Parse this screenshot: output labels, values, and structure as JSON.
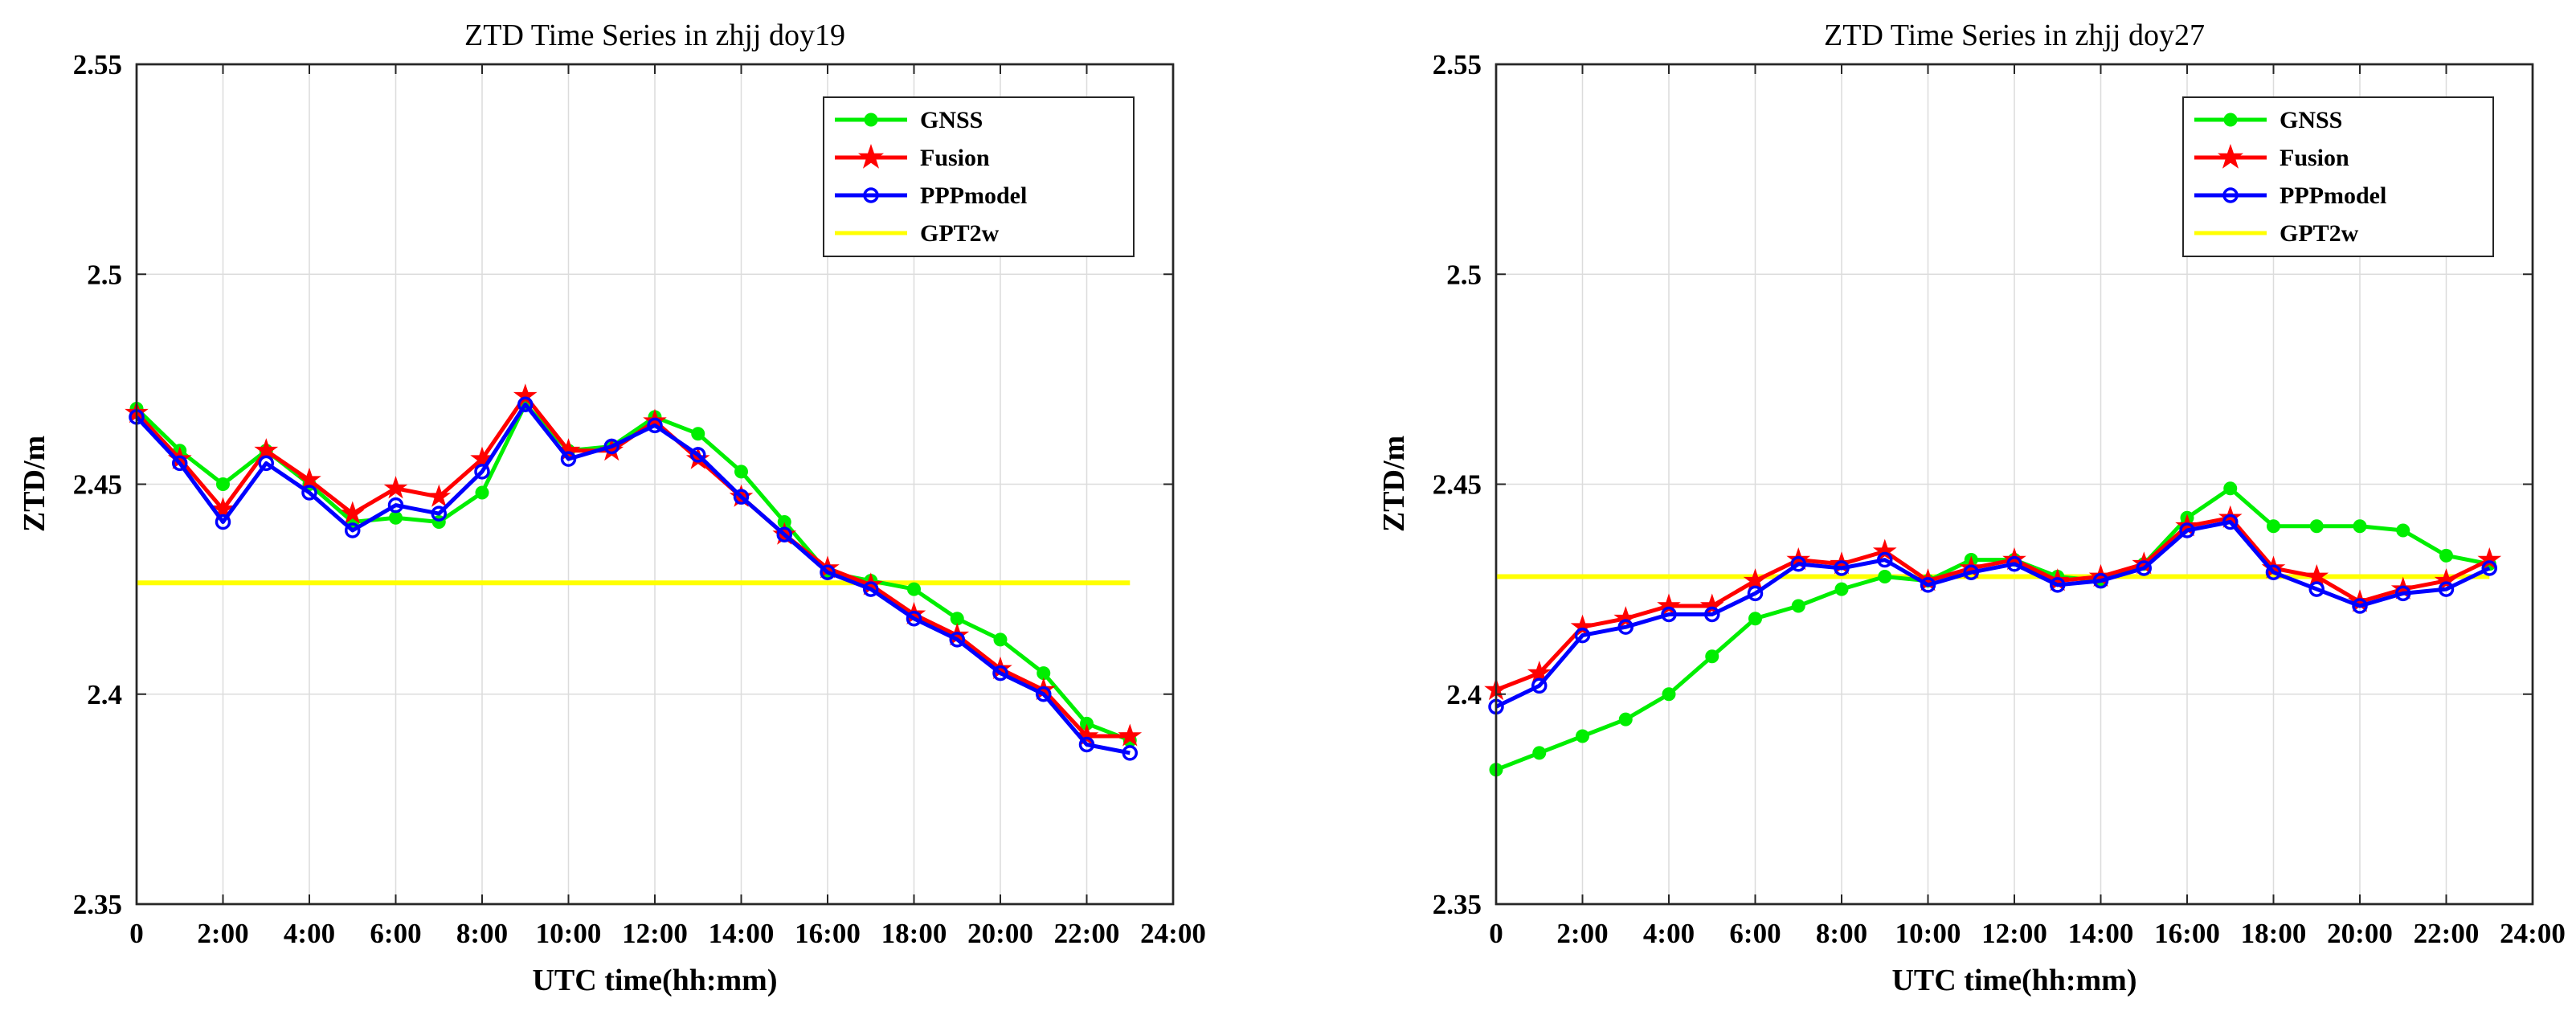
{
  "chart_data": [
    {
      "type": "line",
      "title": "ZTD Time Series in zhjj doy19",
      "xlabel": "UTC time(hh:mm)",
      "ylabel": "ZTD/m",
      "xlim": [
        0,
        24
      ],
      "ylim": [
        2.35,
        2.55
      ],
      "xticks": [
        0,
        2,
        4,
        6,
        8,
        10,
        12,
        14,
        16,
        18,
        20,
        22,
        24
      ],
      "xtick_labels": [
        "0",
        "2:00",
        "4:00",
        "6:00",
        "8:00",
        "10:00",
        "12:00",
        "14:00",
        "16:00",
        "18:00",
        "20:00",
        "22:00",
        "24:00"
      ],
      "yticks": [
        2.35,
        2.4,
        2.45,
        2.5,
        2.55
      ],
      "ytick_labels": [
        "2.35",
        "2.4",
        "2.45",
        "2.5",
        "2.55"
      ],
      "grid": true,
      "legend_position": "top-right",
      "x": [
        0,
        1,
        2,
        3,
        4,
        5,
        6,
        7,
        8,
        9,
        10,
        11,
        12,
        13,
        14,
        15,
        16,
        17,
        18,
        19,
        20,
        21,
        22,
        23
      ],
      "series": [
        {
          "name": "GNSS",
          "color": "#00ee00",
          "marker": "dot",
          "values": [
            2.468,
            2.458,
            2.45,
            2.458,
            2.45,
            2.441,
            2.442,
            2.441,
            2.448,
            2.469,
            2.458,
            2.459,
            2.466,
            2.462,
            2.453,
            2.441,
            2.429,
            2.427,
            2.425,
            2.418,
            2.413,
            2.405,
            2.393,
            2.389
          ]
        },
        {
          "name": "Fusion",
          "color": "#ff0000",
          "marker": "star",
          "values": [
            2.467,
            2.456,
            2.444,
            2.458,
            2.451,
            2.443,
            2.449,
            2.447,
            2.456,
            2.471,
            2.458,
            2.458,
            2.465,
            2.456,
            2.447,
            2.438,
            2.43,
            2.426,
            2.419,
            2.414,
            2.406,
            2.401,
            2.39,
            2.39
          ]
        },
        {
          "name": "PPPmodel",
          "color": "#0000ff",
          "marker": "circle",
          "values": [
            2.466,
            2.455,
            2.441,
            2.455,
            2.448,
            2.439,
            2.445,
            2.443,
            2.453,
            2.469,
            2.456,
            2.459,
            2.464,
            2.457,
            2.447,
            2.438,
            2.429,
            2.425,
            2.418,
            2.413,
            2.405,
            2.4,
            2.388,
            2.386
          ]
        },
        {
          "name": "GPT2w",
          "color": "#ffff00",
          "marker": "none",
          "values": [
            2.4265,
            2.4265,
            2.4265,
            2.4265,
            2.4265,
            2.4265,
            2.4265,
            2.4265,
            2.4265,
            2.4265,
            2.4265,
            2.4265,
            2.4265,
            2.4265,
            2.4265,
            2.4265,
            2.4265,
            2.4265,
            2.4265,
            2.4265,
            2.4265,
            2.4265,
            2.4265,
            2.4265
          ]
        }
      ]
    },
    {
      "type": "line",
      "title": "ZTD Time Series in zhjj doy27",
      "xlabel": "UTC time(hh:mm)",
      "ylabel": "ZTD/m",
      "xlim": [
        0,
        24
      ],
      "ylim": [
        2.35,
        2.55
      ],
      "xticks": [
        0,
        2,
        4,
        6,
        8,
        10,
        12,
        14,
        16,
        18,
        20,
        22,
        24
      ],
      "xtick_labels": [
        "0",
        "2:00",
        "4:00",
        "6:00",
        "8:00",
        "10:00",
        "12:00",
        "14:00",
        "16:00",
        "18:00",
        "20:00",
        "22:00",
        "24:00"
      ],
      "yticks": [
        2.35,
        2.4,
        2.45,
        2.5,
        2.55
      ],
      "ytick_labels": [
        "2.35",
        "2.4",
        "2.45",
        "2.5",
        "2.55"
      ],
      "grid": true,
      "legend_position": "top-right",
      "x": [
        0,
        1,
        2,
        3,
        4,
        5,
        6,
        7,
        8,
        9,
        10,
        11,
        12,
        13,
        14,
        15,
        16,
        17,
        18,
        19,
        20,
        21,
        22,
        23
      ],
      "series": [
        {
          "name": "GNSS",
          "color": "#00ee00",
          "marker": "dot",
          "values": [
            2.382,
            2.386,
            2.39,
            2.394,
            2.4,
            2.409,
            2.418,
            2.421,
            2.425,
            2.428,
            2.427,
            2.432,
            2.432,
            2.428,
            2.427,
            2.431,
            2.442,
            2.449,
            2.44,
            2.44,
            2.44,
            2.439,
            2.433,
            2.431
          ]
        },
        {
          "name": "Fusion",
          "color": "#ff0000",
          "marker": "star",
          "values": [
            2.401,
            2.405,
            2.416,
            2.418,
            2.421,
            2.421,
            2.427,
            2.432,
            2.431,
            2.434,
            2.427,
            2.43,
            2.432,
            2.427,
            2.428,
            2.431,
            2.44,
            2.442,
            2.43,
            2.428,
            2.422,
            2.425,
            2.427,
            2.432
          ]
        },
        {
          "name": "PPPmodel",
          "color": "#0000ff",
          "marker": "circle",
          "values": [
            2.397,
            2.402,
            2.414,
            2.416,
            2.419,
            2.419,
            2.424,
            2.431,
            2.43,
            2.432,
            2.426,
            2.429,
            2.431,
            2.426,
            2.427,
            2.43,
            2.439,
            2.441,
            2.429,
            2.425,
            2.421,
            2.424,
            2.425,
            2.43
          ]
        },
        {
          "name": "GPT2w",
          "color": "#ffff00",
          "marker": "none",
          "values": [
            2.428,
            2.428,
            2.428,
            2.428,
            2.428,
            2.428,
            2.428,
            2.428,
            2.428,
            2.428,
            2.428,
            2.428,
            2.428,
            2.428,
            2.428,
            2.428,
            2.428,
            2.428,
            2.428,
            2.428,
            2.428,
            2.428,
            2.428,
            2.428
          ]
        }
      ]
    }
  ]
}
